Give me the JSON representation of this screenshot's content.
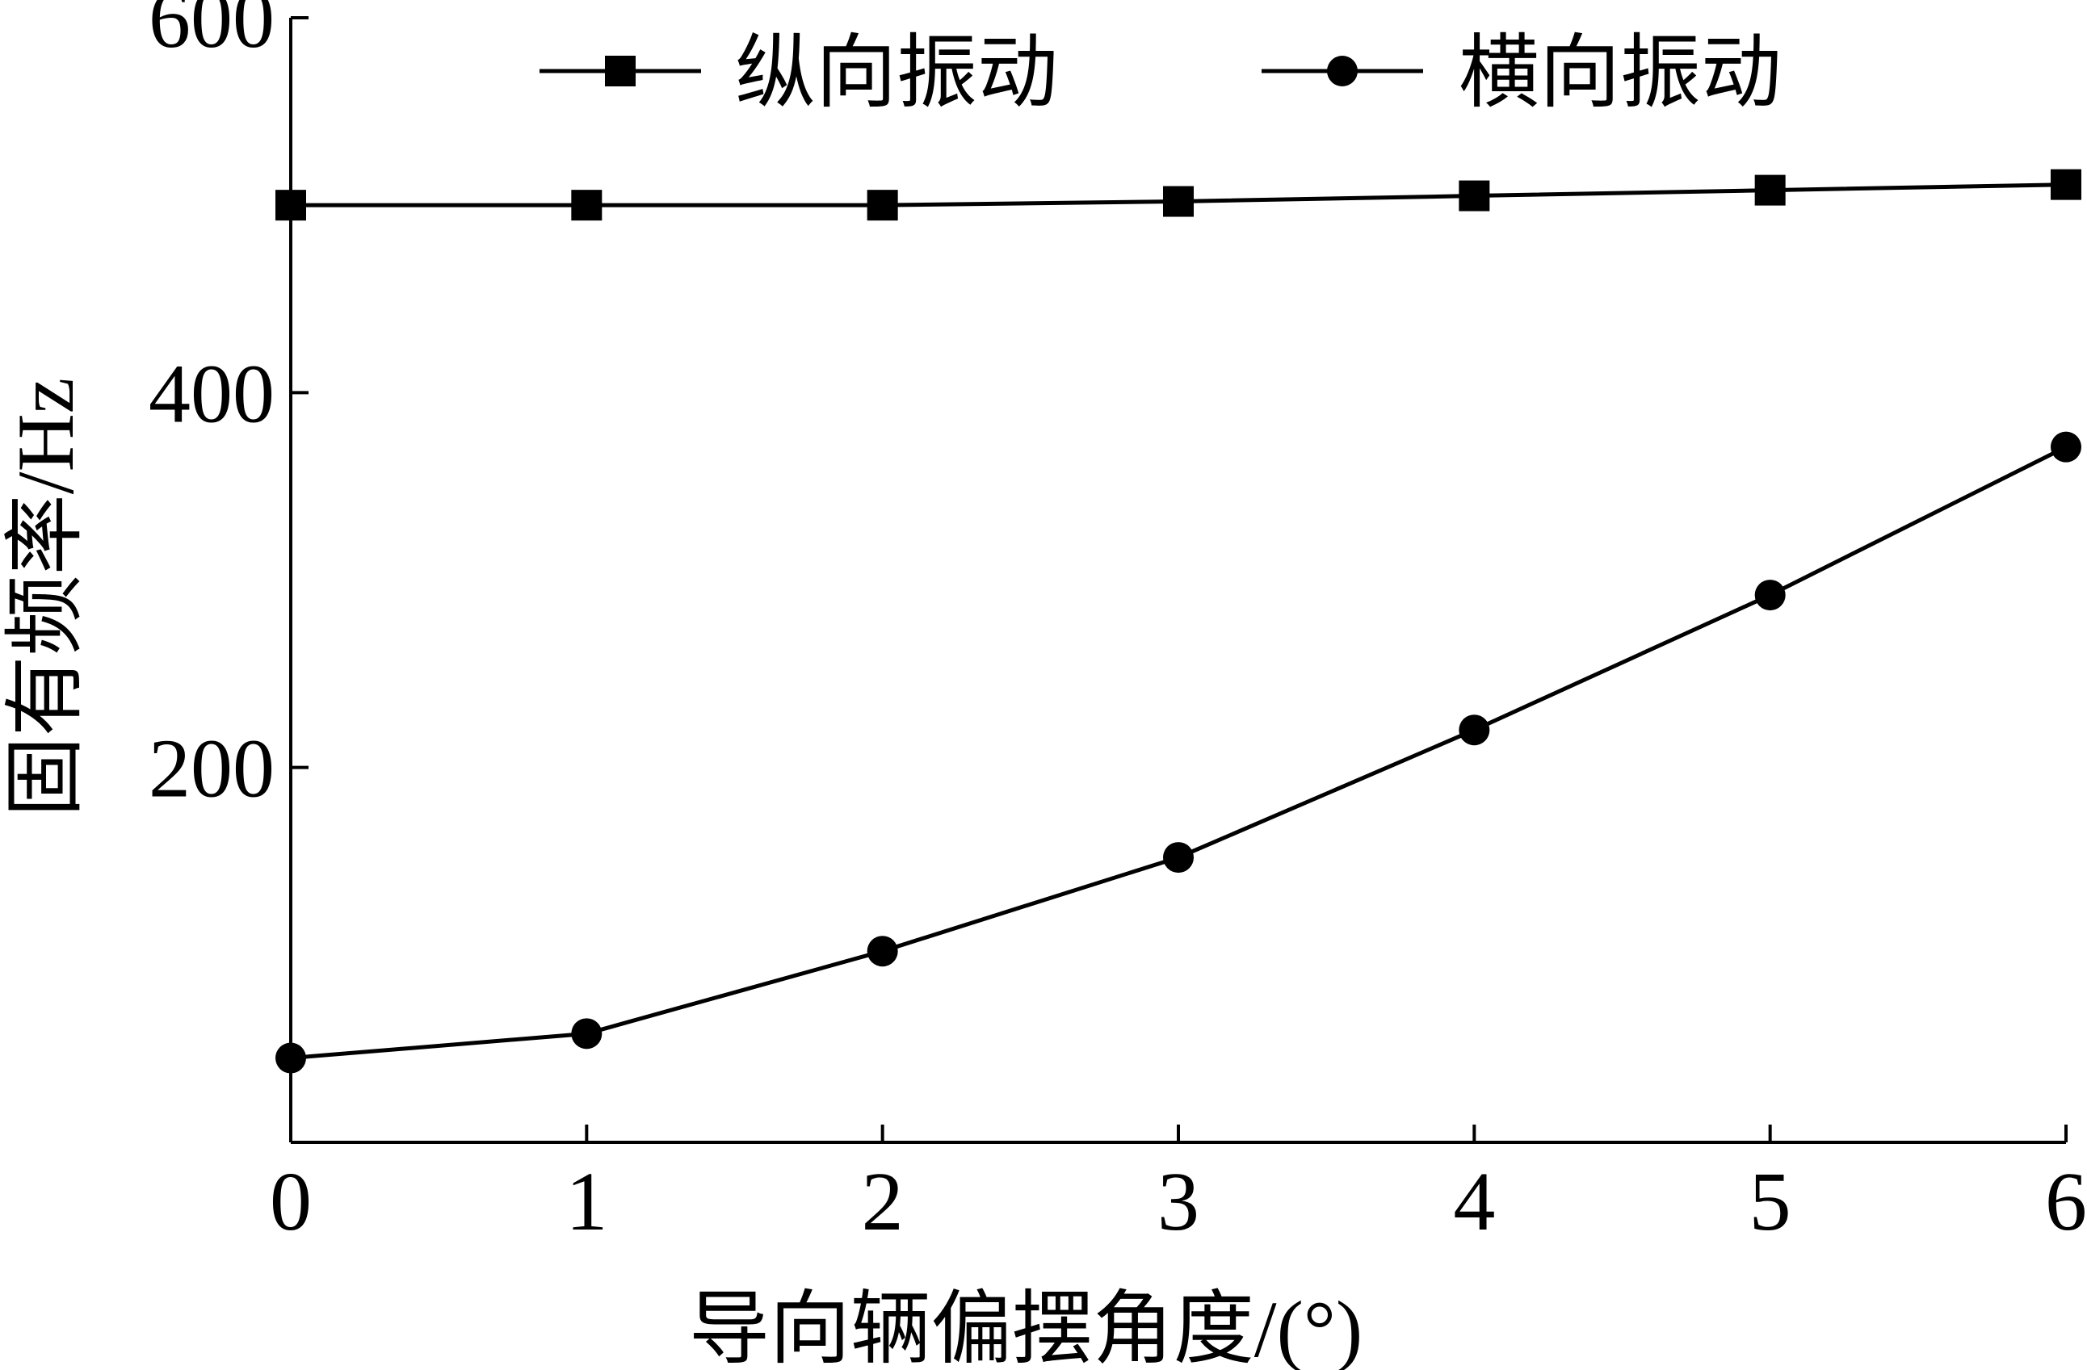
{
  "chart_data": {
    "type": "line",
    "x": [
      0,
      1,
      2,
      3,
      4,
      5,
      6
    ],
    "series": [
      {
        "name": "纵向振动",
        "marker": "square",
        "values": [
          500,
          500,
          500,
          502,
          505,
          508,
          511
        ]
      },
      {
        "name": "横向振动",
        "marker": "circle",
        "values": [
          45,
          58,
          102,
          152,
          220,
          292,
          371
        ]
      }
    ],
    "xlabel": "导向辆偏摆角度/(°)",
    "ylabel": "固有频率/Hz",
    "xlim": [
      0,
      6
    ],
    "ylim": [
      0,
      600
    ],
    "xticks": [
      "0",
      "1",
      "2",
      "3",
      "4",
      "5",
      "6"
    ],
    "yticks": [
      "200",
      "400",
      "600"
    ],
    "ytick_values": [
      200,
      400,
      600
    ],
    "grid": false,
    "legend_position": "top-center",
    "line_color": "#000000"
  }
}
